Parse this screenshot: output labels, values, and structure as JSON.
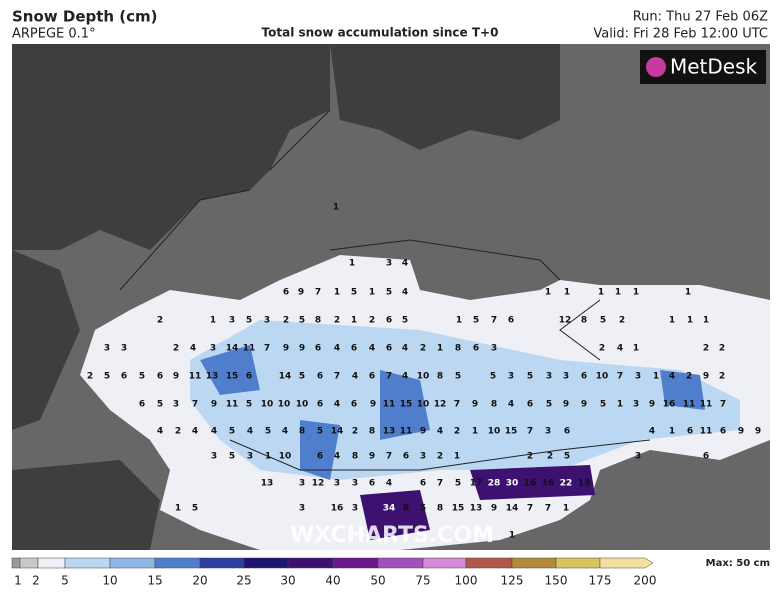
{
  "header": {
    "title": "Snow Depth (cm)",
    "model": "ARPEGE 0.1°",
    "subtitle": "Total snow accumulation since T+0",
    "run": "Run: Thu 27 Feb 06Z",
    "valid": "Valid: Fri 28 Feb 12:00 UTC"
  },
  "logo": "MetDesk",
  "watermark": "WXCHARTS.COM",
  "legend": {
    "labels": [
      1,
      2,
      5,
      10,
      15,
      20,
      25,
      30,
      40,
      50,
      75,
      100,
      125,
      150,
      175,
      200
    ],
    "colors": [
      "#9a9a9a",
      "#c8c8c8",
      "#eef0f6",
      "#bcd7f2",
      "#8db6e6",
      "#4f7fcc",
      "#2b3fa0",
      "#1e1570",
      "#3d1170",
      "#6a1a8c",
      "#a34fbd",
      "#d38ad8",
      "#b0574a",
      "#b38a3c",
      "#d9c45c",
      "#f3e0a0"
    ],
    "max": "Max: 50 cm"
  },
  "map_labels": [
    1,
    1,
    3,
    4,
    6,
    9,
    7,
    1,
    5,
    1,
    5,
    4,
    1,
    1,
    1,
    1,
    1,
    1,
    2,
    1,
    3,
    5,
    3,
    2,
    5,
    8,
    2,
    1,
    2,
    6,
    5,
    1,
    5,
    7,
    6,
    12,
    8,
    5,
    2,
    1,
    1,
    1,
    3,
    3,
    2,
    4,
    3,
    14,
    11,
    7,
    9,
    9,
    6,
    4,
    6,
    4,
    6,
    4,
    2,
    1,
    8,
    6,
    3,
    2,
    4,
    1,
    2,
    2,
    2,
    5,
    6,
    5,
    6,
    9,
    11,
    13,
    15,
    6,
    14,
    5,
    6,
    7,
    4,
    6,
    7,
    4,
    10,
    8,
    5,
    5,
    3,
    5,
    3,
    3,
    6,
    10,
    7,
    3,
    1,
    4,
    2,
    9,
    2,
    6,
    5,
    3,
    7,
    9,
    11,
    5,
    10,
    10,
    10,
    6,
    4,
    6,
    9,
    11,
    15,
    10,
    12,
    7,
    9,
    8,
    4,
    6,
    5,
    9,
    9,
    5,
    1,
    3,
    9,
    16,
    11,
    11,
    7,
    4,
    2,
    4,
    4,
    5,
    4,
    5,
    4,
    8,
    5,
    14,
    2,
    8,
    13,
    11,
    9,
    4,
    2,
    1,
    10,
    15,
    7,
    3,
    6,
    4,
    1,
    6,
    11,
    6,
    9,
    9,
    3,
    5,
    3,
    1,
    10,
    6,
    4,
    8,
    9,
    7,
    6,
    3,
    2,
    1,
    2,
    2,
    5,
    3,
    6,
    13,
    3,
    12,
    3,
    3,
    6,
    4,
    6,
    7,
    5,
    17,
    28,
    30,
    16,
    16,
    22,
    13,
    1,
    5,
    3,
    16,
    3,
    34,
    8,
    5,
    8,
    15,
    13,
    9,
    14,
    7,
    7,
    1,
    1
  ]
}
